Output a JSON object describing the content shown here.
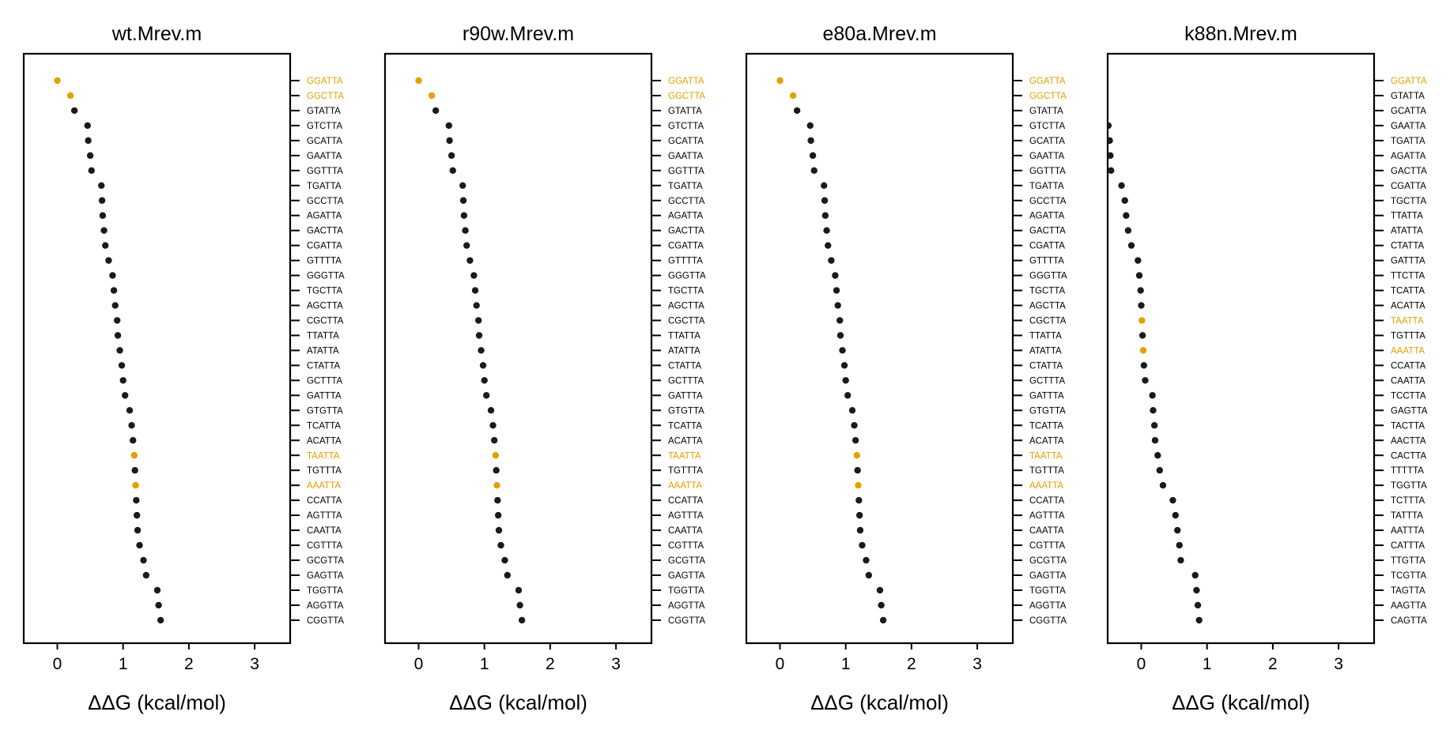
{
  "colors": {
    "highlight": "#e69f00",
    "normal": "#1a1a1a",
    "axis": "#000000"
  },
  "chart_data": [
    {
      "type": "scatter",
      "title": "wt.Mrev.m",
      "xlabel": "ΔΔG (kcal/mol)",
      "xlim": [
        -0.5,
        3.5
      ],
      "xticks": [
        0,
        1,
        2,
        3
      ],
      "highlight": [
        "GGATTA",
        "GGCTTA",
        "TAATTA",
        "AAATTA"
      ],
      "points": [
        {
          "label": "GGATTA",
          "x": 0.0
        },
        {
          "label": "GGCTTA",
          "x": 0.2
        },
        {
          "label": "GTATTA",
          "x": 0.26
        },
        {
          "label": "GTCTTA",
          "x": 0.46
        },
        {
          "label": "GCATTA",
          "x": 0.47
        },
        {
          "label": "GAATTA",
          "x": 0.5
        },
        {
          "label": "GGTTTA",
          "x": 0.52
        },
        {
          "label": "TGATTA",
          "x": 0.67
        },
        {
          "label": "GCCTTA",
          "x": 0.68
        },
        {
          "label": "AGATTA",
          "x": 0.69
        },
        {
          "label": "GACTTA",
          "x": 0.71
        },
        {
          "label": "CGATTA",
          "x": 0.73
        },
        {
          "label": "GTTTTA",
          "x": 0.78
        },
        {
          "label": "GGGTTA",
          "x": 0.84
        },
        {
          "label": "TGCTTA",
          "x": 0.86
        },
        {
          "label": "AGCTTA",
          "x": 0.88
        },
        {
          "label": "CGCTTA",
          "x": 0.91
        },
        {
          "label": "TTATTA",
          "x": 0.92
        },
        {
          "label": "ATATTA",
          "x": 0.95
        },
        {
          "label": "CTATTA",
          "x": 0.98
        },
        {
          "label": "GCTTTA",
          "x": 1.0
        },
        {
          "label": "GATTTA",
          "x": 1.03
        },
        {
          "label": "GTGTTA",
          "x": 1.1
        },
        {
          "label": "TCATTA",
          "x": 1.13
        },
        {
          "label": "ACATTA",
          "x": 1.15
        },
        {
          "label": "TAATTA",
          "x": 1.17
        },
        {
          "label": "TGTTTA",
          "x": 1.18
        },
        {
          "label": "AAATTA",
          "x": 1.19
        },
        {
          "label": "CCATTA",
          "x": 1.2
        },
        {
          "label": "AGTTTA",
          "x": 1.21
        },
        {
          "label": "CAATTA",
          "x": 1.22
        },
        {
          "label": "CGTTTA",
          "x": 1.25
        },
        {
          "label": "GCGTTA",
          "x": 1.31
        },
        {
          "label": "GAGTTA",
          "x": 1.35
        },
        {
          "label": "TGGTTA",
          "x": 1.52
        },
        {
          "label": "AGGTTA",
          "x": 1.54
        },
        {
          "label": "CGGTTA",
          "x": 1.57
        }
      ]
    },
    {
      "type": "scatter",
      "title": "r90w.Mrev.m",
      "xlabel": "ΔΔG (kcal/mol)",
      "xlim": [
        -0.5,
        3.5
      ],
      "xticks": [
        0,
        1,
        2,
        3
      ],
      "highlight": [
        "GGATTA",
        "GGCTTA",
        "TAATTA",
        "AAATTA"
      ],
      "points": [
        {
          "label": "GGATTA",
          "x": 0.0
        },
        {
          "label": "GGCTTA",
          "x": 0.2
        },
        {
          "label": "GTATTA",
          "x": 0.26
        },
        {
          "label": "GTCTTA",
          "x": 0.46
        },
        {
          "label": "GCATTA",
          "x": 0.47
        },
        {
          "label": "GAATTA",
          "x": 0.5
        },
        {
          "label": "GGTTTA",
          "x": 0.52
        },
        {
          "label": "TGATTA",
          "x": 0.67
        },
        {
          "label": "GCCTTA",
          "x": 0.68
        },
        {
          "label": "AGATTA",
          "x": 0.69
        },
        {
          "label": "GACTTA",
          "x": 0.71
        },
        {
          "label": "CGATTA",
          "x": 0.73
        },
        {
          "label": "GTTTTA",
          "x": 0.78
        },
        {
          "label": "GGGTTA",
          "x": 0.84
        },
        {
          "label": "TGCTTA",
          "x": 0.86
        },
        {
          "label": "AGCTTA",
          "x": 0.88
        },
        {
          "label": "CGCTTA",
          "x": 0.91
        },
        {
          "label": "TTATTA",
          "x": 0.92
        },
        {
          "label": "ATATTA",
          "x": 0.95
        },
        {
          "label": "CTATTA",
          "x": 0.98
        },
        {
          "label": "GCTTTA",
          "x": 1.0
        },
        {
          "label": "GATTTA",
          "x": 1.03
        },
        {
          "label": "GTGTTA",
          "x": 1.1
        },
        {
          "label": "TCATTA",
          "x": 1.13
        },
        {
          "label": "ACATTA",
          "x": 1.15
        },
        {
          "label": "TAATTA",
          "x": 1.17
        },
        {
          "label": "TGTTTA",
          "x": 1.18
        },
        {
          "label": "AAATTA",
          "x": 1.19
        },
        {
          "label": "CCATTA",
          "x": 1.2
        },
        {
          "label": "AGTTTA",
          "x": 1.21
        },
        {
          "label": "CAATTA",
          "x": 1.22
        },
        {
          "label": "CGTTTA",
          "x": 1.25
        },
        {
          "label": "GCGTTA",
          "x": 1.31
        },
        {
          "label": "GAGTTA",
          "x": 1.35
        },
        {
          "label": "TGGTTA",
          "x": 1.52
        },
        {
          "label": "AGGTTA",
          "x": 1.54
        },
        {
          "label": "CGGTTA",
          "x": 1.57
        }
      ]
    },
    {
      "type": "scatter",
      "title": "e80a.Mrev.m",
      "xlabel": "ΔΔG (kcal/mol)",
      "xlim": [
        -0.5,
        3.5
      ],
      "xticks": [
        0,
        1,
        2,
        3
      ],
      "highlight": [
        "GGATTA",
        "GGCTTA",
        "TAATTA",
        "AAATTA"
      ],
      "points": [
        {
          "label": "GGATTA",
          "x": 0.0
        },
        {
          "label": "GGCTTA",
          "x": 0.2
        },
        {
          "label": "GTATTA",
          "x": 0.26
        },
        {
          "label": "GTCTTA",
          "x": 0.46
        },
        {
          "label": "GCATTA",
          "x": 0.47
        },
        {
          "label": "GAATTA",
          "x": 0.5
        },
        {
          "label": "GGTTTA",
          "x": 0.52
        },
        {
          "label": "TGATTA",
          "x": 0.67
        },
        {
          "label": "GCCTTA",
          "x": 0.68
        },
        {
          "label": "AGATTA",
          "x": 0.69
        },
        {
          "label": "GACTTA",
          "x": 0.71
        },
        {
          "label": "CGATTA",
          "x": 0.73
        },
        {
          "label": "GTTTTA",
          "x": 0.78
        },
        {
          "label": "GGGTTA",
          "x": 0.84
        },
        {
          "label": "TGCTTA",
          "x": 0.86
        },
        {
          "label": "AGCTTA",
          "x": 0.88
        },
        {
          "label": "CGCTTA",
          "x": 0.91
        },
        {
          "label": "TTATTA",
          "x": 0.92
        },
        {
          "label": "ATATTA",
          "x": 0.95
        },
        {
          "label": "CTATTA",
          "x": 0.98
        },
        {
          "label": "GCTTTA",
          "x": 1.0
        },
        {
          "label": "GATTTA",
          "x": 1.03
        },
        {
          "label": "GTGTTA",
          "x": 1.1
        },
        {
          "label": "TCATTA",
          "x": 1.13
        },
        {
          "label": "ACATTA",
          "x": 1.15
        },
        {
          "label": "TAATTA",
          "x": 1.17
        },
        {
          "label": "TGTTTA",
          "x": 1.18
        },
        {
          "label": "AAATTA",
          "x": 1.19
        },
        {
          "label": "CCATTA",
          "x": 1.2
        },
        {
          "label": "AGTTTA",
          "x": 1.21
        },
        {
          "label": "CAATTA",
          "x": 1.22
        },
        {
          "label": "CGTTTA",
          "x": 1.25
        },
        {
          "label": "GCGTTA",
          "x": 1.31
        },
        {
          "label": "GAGTTA",
          "x": 1.35
        },
        {
          "label": "TGGTTA",
          "x": 1.52
        },
        {
          "label": "AGGTTA",
          "x": 1.54
        },
        {
          "label": "CGGTTA",
          "x": 1.57
        }
      ]
    },
    {
      "type": "scatter",
      "title": "k88n.Mrev.m",
      "xlabel": "ΔΔG (kcal/mol)",
      "xlim": [
        -0.5,
        3.5
      ],
      "xticks": [
        0,
        1,
        2,
        3
      ],
      "highlight": [
        "GGATTA",
        "TAATTA",
        "AAATTA"
      ],
      "points": [
        {
          "label": "GGATTA",
          "x": null
        },
        {
          "label": "GTATTA",
          "x": null
        },
        {
          "label": "GCATTA",
          "x": null
        },
        {
          "label": "GAATTA",
          "x": -0.5
        },
        {
          "label": "TGATTA",
          "x": -0.48
        },
        {
          "label": "AGATTA",
          "x": -0.47
        },
        {
          "label": "GACTTA",
          "x": -0.46
        },
        {
          "label": "CGATTA",
          "x": -0.3
        },
        {
          "label": "TGCTTA",
          "x": -0.25
        },
        {
          "label": "TTATTA",
          "x": -0.23
        },
        {
          "label": "ATATTA",
          "x": -0.2
        },
        {
          "label": "CTATTA",
          "x": -0.15
        },
        {
          "label": "GATTTA",
          "x": -0.05
        },
        {
          "label": "TTCTTA",
          "x": -0.03
        },
        {
          "label": "TCATTA",
          "x": -0.01
        },
        {
          "label": "ACATTA",
          "x": 0.0
        },
        {
          "label": "TAATTA",
          "x": 0.01
        },
        {
          "label": "TGTTTA",
          "x": 0.02
        },
        {
          "label": "AAATTA",
          "x": 0.03
        },
        {
          "label": "CCATTA",
          "x": 0.04
        },
        {
          "label": "CAATTA",
          "x": 0.06
        },
        {
          "label": "TCCTTA",
          "x": 0.17
        },
        {
          "label": "GAGTTA",
          "x": 0.18
        },
        {
          "label": "TACTTA",
          "x": 0.2
        },
        {
          "label": "AACTTA",
          "x": 0.21
        },
        {
          "label": "CACTTA",
          "x": 0.25
        },
        {
          "label": "TTTTTA",
          "x": 0.28
        },
        {
          "label": "TGGTTA",
          "x": 0.33
        },
        {
          "label": "TCTTTA",
          "x": 0.48
        },
        {
          "label": "TATTTA",
          "x": 0.52
        },
        {
          "label": "AATTTA",
          "x": 0.55
        },
        {
          "label": "CATTTA",
          "x": 0.58
        },
        {
          "label": "TTGTTA",
          "x": 0.6
        },
        {
          "label": "TCGTTA",
          "x": 0.82
        },
        {
          "label": "TAGTTA",
          "x": 0.84
        },
        {
          "label": "AAGTTA",
          "x": 0.86
        },
        {
          "label": "CAGTTA",
          "x": 0.88
        }
      ]
    }
  ]
}
